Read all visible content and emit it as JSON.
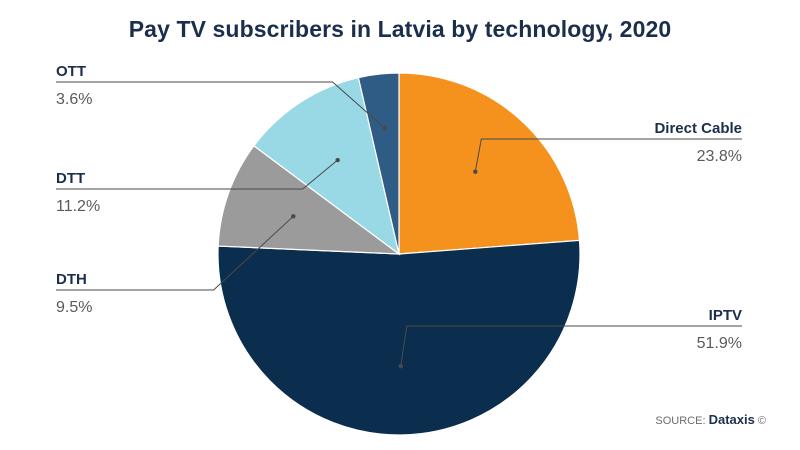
{
  "title": "Pay TV subscribers in Latvia by technology, 2020",
  "source": {
    "prefix": "SOURCE:",
    "brand": "Dataxis",
    "mark": "©"
  },
  "chart_data": {
    "type": "pie",
    "title": "Pay TV subscribers in Latvia by technology, 2020",
    "slices": [
      {
        "label": "Direct Cable",
        "value": 23.8,
        "display": "23.8%",
        "color": "#f5921e"
      },
      {
        "label": "IPTV",
        "value": 51.9,
        "display": "51.9%",
        "color": "#0b2d4e"
      },
      {
        "label": "DTH",
        "value": 9.5,
        "display": "9.5%",
        "color": "#9b9b9b"
      },
      {
        "label": "DTT",
        "value": 11.2,
        "display": "11.2%",
        "color": "#99d9e6"
      },
      {
        "label": "OTT",
        "value": 3.6,
        "display": "3.6%",
        "color": "#2f5c84"
      }
    ]
  }
}
